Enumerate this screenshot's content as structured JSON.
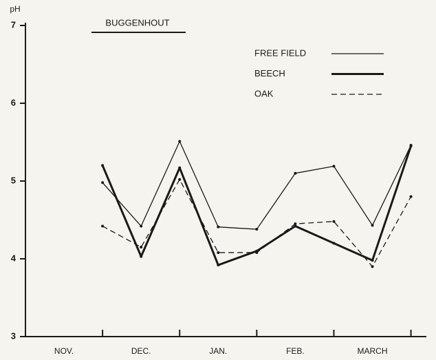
{
  "chart_data": {
    "type": "line",
    "title": "BUGGENHOUT",
    "y_label": "pH",
    "x": [
      1,
      1.5,
      2,
      2.5,
      3,
      3.5,
      4,
      4.5,
      5
    ],
    "xlim": [
      0,
      5.2
    ],
    "xticks": [
      {
        "value": 0.5,
        "label": "NOV."
      },
      {
        "value": 1.5,
        "label": "DEC."
      },
      {
        "value": 2.5,
        "label": "JAN."
      },
      {
        "value": 3.5,
        "label": "FEB."
      },
      {
        "value": 4.5,
        "label": "MARCH"
      }
    ],
    "ylim": [
      3,
      7
    ],
    "yticks": [
      3,
      4,
      5,
      6,
      7
    ],
    "grid": false,
    "legend": "upper right",
    "series": [
      {
        "name": "FREE FIELD",
        "color": "#1a1a1a",
        "line_width": 1.3,
        "dashed": false,
        "values": [
          4.98,
          4.42,
          5.51,
          4.41,
          4.38,
          5.1,
          5.19,
          4.43,
          5.46
        ]
      },
      {
        "name": "BEECH",
        "color": "#1a1a1a",
        "line_width": 3,
        "dashed": false,
        "values": [
          5.2,
          4.03,
          5.17,
          3.92,
          4.1,
          4.42,
          4.2,
          3.98,
          5.45
        ]
      },
      {
        "name": "OAK",
        "color": "#1a1a1a",
        "line_width": 1.3,
        "dashed": true,
        "values": [
          4.42,
          4.15,
          5.02,
          4.08,
          4.08,
          4.45,
          4.48,
          3.9,
          4.8
        ]
      }
    ]
  }
}
